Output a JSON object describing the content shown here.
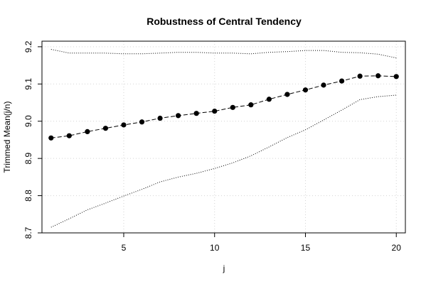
{
  "chart_data": {
    "type": "line",
    "title": "Robustness of Central Tendency",
    "xlabel": "j",
    "ylabel": "Trimmed Mean(j/n)",
    "xlim": [
      0.5,
      20.5
    ],
    "ylim": [
      8.7,
      9.215
    ],
    "x_ticks": [
      5,
      10,
      15,
      20
    ],
    "y_ticks": [
      8.7,
      8.8,
      8.9,
      9.0,
      9.1,
      9.2
    ],
    "x_tick_labels": [
      "5",
      "10",
      "15",
      "20"
    ],
    "y_tick_labels": [
      "8.7",
      "8.8",
      "8.9",
      "9.0",
      "9.1",
      "9.2"
    ],
    "grid": true,
    "series": [
      {
        "role": "trimmed-mean",
        "style": "dashed line with filled circles",
        "x": [
          1,
          2,
          3,
          4,
          5,
          6,
          7,
          8,
          9,
          10,
          11,
          12,
          13,
          14,
          15,
          16,
          17,
          18,
          19,
          20
        ],
        "values": [
          8.955,
          8.961,
          8.972,
          8.981,
          8.99,
          8.998,
          9.008,
          9.015,
          9.021,
          9.027,
          9.037,
          9.044,
          9.059,
          9.072,
          9.084,
          9.097,
          9.108,
          9.121,
          9.122,
          9.12
        ]
      },
      {
        "role": "upper-bound",
        "style": "dotted line",
        "x": [
          1,
          2,
          3,
          4,
          5,
          6,
          7,
          8,
          9,
          10,
          11,
          12,
          13,
          14,
          15,
          16,
          17,
          18,
          19,
          20
        ],
        "values": [
          9.193,
          9.183,
          9.183,
          9.183,
          9.181,
          9.181,
          9.183,
          9.185,
          9.185,
          9.183,
          9.183,
          9.181,
          9.185,
          9.187,
          9.19,
          9.19,
          9.185,
          9.184,
          9.18,
          9.17
        ]
      },
      {
        "role": "lower-bound",
        "style": "dotted line",
        "x": [
          1,
          2,
          3,
          4,
          5,
          6,
          7,
          8,
          9,
          10,
          11,
          12,
          13,
          14,
          15,
          16,
          17,
          18,
          19,
          20
        ],
        "values": [
          8.715,
          8.738,
          8.762,
          8.78,
          8.799,
          8.817,
          8.837,
          8.85,
          8.86,
          8.873,
          8.888,
          8.907,
          8.931,
          8.956,
          8.977,
          9.003,
          9.03,
          9.058,
          9.066,
          9.07
        ]
      }
    ],
    "colors": {
      "line": "#000000",
      "grid": "#d3d3d3",
      "background": "#ffffff"
    }
  }
}
